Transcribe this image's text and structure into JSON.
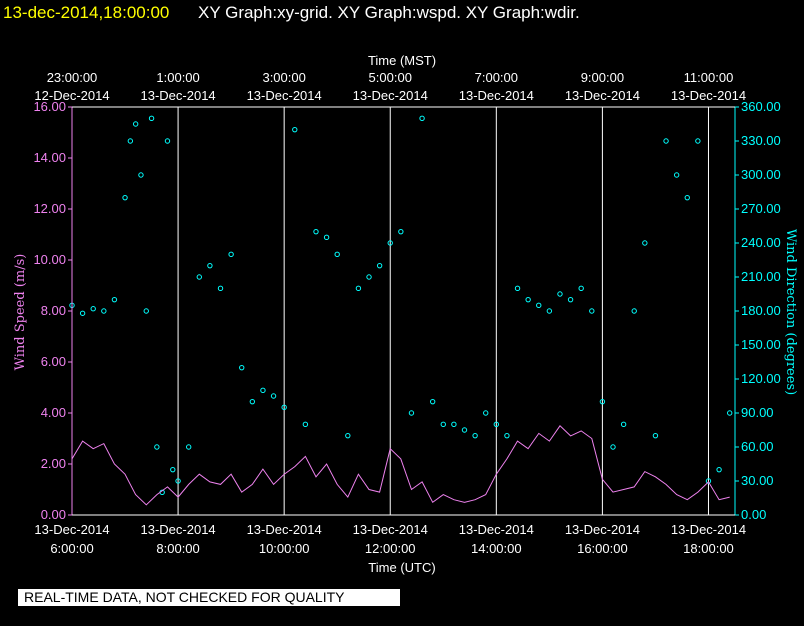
{
  "header": {
    "timestamp": "13-dec-2014,18:00:00",
    "title_text": "XY Graph:xy-grid.  XY Graph:wspd.  XY Graph:wdir."
  },
  "disclaimer": "REAL-TIME DATA, NOT CHECKED FOR QUALITY",
  "colors": {
    "background": "#000000",
    "wind_speed": "#ee82ee",
    "wind_direction": "#00ffff",
    "grid": "#ffffff",
    "timestamp": "#ffff00"
  },
  "chart_data": {
    "type": "scatter",
    "x_top_label": "Time (MST)",
    "x_bottom_label": "Time (UTC)",
    "y_left_label": "Wind Speed (m/s)",
    "y_right_label": "Wind Direction (degrees)",
    "ylim_left": [
      0,
      16
    ],
    "ylim_right": [
      0,
      360
    ],
    "xlim_hours_utc": [
      6,
      18.5
    ],
    "grid": "vertical",
    "left_ticks": [
      "0.00",
      "2.00",
      "4.00",
      "6.00",
      "8.00",
      "10.00",
      "12.00",
      "14.00",
      "16.00"
    ],
    "right_ticks": [
      "0.00",
      "30.00",
      "60.00",
      "90.00",
      "120.00",
      "150.00",
      "180.00",
      "210.00",
      "240.00",
      "270.00",
      "300.00",
      "330.00",
      "360.00"
    ],
    "top_ticks": [
      {
        "time": "23:00:00",
        "date": "12-Dec-2014"
      },
      {
        "time": "1:00:00",
        "date": "13-Dec-2014"
      },
      {
        "time": "3:00:00",
        "date": "13-Dec-2014"
      },
      {
        "time": "5:00:00",
        "date": "13-Dec-2014"
      },
      {
        "time": "7:00:00",
        "date": "13-Dec-2014"
      },
      {
        "time": "9:00:00",
        "date": "13-Dec-2014"
      },
      {
        "time": "11:00:00",
        "date": "13-Dec-2014"
      }
    ],
    "bottom_ticks": [
      {
        "date": "13-Dec-2014",
        "time": "6:00:00"
      },
      {
        "date": "13-Dec-2014",
        "time": "8:00:00"
      },
      {
        "date": "13-Dec-2014",
        "time": "10:00:00"
      },
      {
        "date": "13-Dec-2014",
        "time": "12:00:00"
      },
      {
        "date": "13-Dec-2014",
        "time": "14:00:00"
      },
      {
        "date": "13-Dec-2014",
        "time": "16:00:00"
      },
      {
        "date": "13-Dec-2014",
        "time": "18:00:00"
      }
    ],
    "series": [
      {
        "name": "wspd",
        "axis": "left",
        "style": "line",
        "x_hours_utc": [
          6.0,
          6.2,
          6.4,
          6.6,
          6.8,
          7.0,
          7.2,
          7.4,
          7.6,
          7.8,
          8.0,
          8.2,
          8.4,
          8.6,
          8.8,
          9.0,
          9.2,
          9.4,
          9.6,
          9.8,
          10.0,
          10.2,
          10.4,
          10.6,
          10.8,
          11.0,
          11.2,
          11.4,
          11.6,
          11.8,
          12.0,
          12.2,
          12.4,
          12.6,
          12.8,
          13.0,
          13.2,
          13.4,
          13.6,
          13.8,
          14.0,
          14.2,
          14.4,
          14.6,
          14.8,
          15.0,
          15.2,
          15.4,
          15.6,
          15.8,
          16.0,
          16.2,
          16.4,
          16.6,
          16.8,
          17.0,
          17.2,
          17.4,
          17.6,
          17.8,
          18.0,
          18.2,
          18.4
        ],
        "values": [
          2.2,
          2.9,
          2.6,
          2.8,
          2.0,
          1.6,
          0.8,
          0.4,
          0.8,
          1.1,
          0.7,
          1.2,
          1.6,
          1.3,
          1.2,
          1.6,
          0.9,
          1.2,
          1.8,
          1.2,
          1.6,
          1.9,
          2.3,
          1.5,
          2.0,
          1.2,
          0.7,
          1.6,
          1.0,
          0.9,
          2.6,
          2.2,
          1.0,
          1.3,
          0.5,
          0.8,
          0.6,
          0.5,
          0.6,
          0.8,
          1.6,
          2.2,
          2.9,
          2.6,
          3.2,
          2.9,
          3.5,
          3.1,
          3.3,
          3.0,
          1.4,
          0.9,
          1.0,
          1.1,
          1.7,
          1.5,
          1.2,
          0.8,
          0.6,
          0.9,
          1.3,
          0.6,
          0.7
        ]
      },
      {
        "name": "wdir",
        "axis": "right",
        "style": "markers",
        "x_hours_utc": [
          6.0,
          6.2,
          6.4,
          6.6,
          6.8,
          7.0,
          7.1,
          7.2,
          7.3,
          7.4,
          7.5,
          7.6,
          7.7,
          7.8,
          7.9,
          8.0,
          8.2,
          8.4,
          8.6,
          8.8,
          9.0,
          9.2,
          9.4,
          9.6,
          9.8,
          10.0,
          10.2,
          10.4,
          10.6,
          10.8,
          11.0,
          11.2,
          11.4,
          11.6,
          11.8,
          12.0,
          12.2,
          12.4,
          12.6,
          12.8,
          13.0,
          13.2,
          13.4,
          13.6,
          13.8,
          14.0,
          14.2,
          14.4,
          14.6,
          14.8,
          15.0,
          15.2,
          15.4,
          15.6,
          15.8,
          16.0,
          16.2,
          16.4,
          16.6,
          16.8,
          17.0,
          17.2,
          17.4,
          17.6,
          17.8,
          18.0,
          18.2,
          18.4
        ],
        "values": [
          185,
          178,
          182,
          180,
          190,
          280,
          330,
          345,
          300,
          180,
          350,
          60,
          20,
          330,
          40,
          30,
          60,
          210,
          220,
          200,
          230,
          130,
          100,
          110,
          105,
          95,
          340,
          80,
          250,
          245,
          230,
          70,
          200,
          210,
          220,
          240,
          250,
          90,
          350,
          100,
          80,
          80,
          75,
          70,
          90,
          80,
          70,
          200,
          190,
          185,
          180,
          195,
          190,
          200,
          180,
          100,
          60,
          80,
          180,
          240,
          70,
          330,
          300,
          280,
          330,
          30,
          40,
          90
        ]
      }
    ]
  }
}
